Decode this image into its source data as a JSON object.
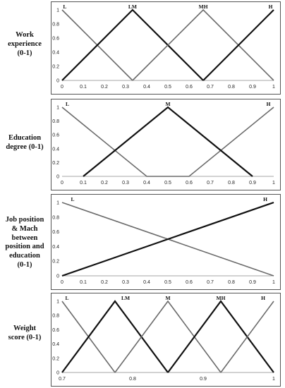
{
  "chart_data": [
    {
      "type": "line",
      "row_label": "Work experience (0-1)",
      "row_label_lines": [
        "Work",
        "experience",
        "(0-1)"
      ],
      "xlim": [
        0,
        1
      ],
      "ylim": [
        0,
        1
      ],
      "x_ticks": [
        "0",
        "0.1",
        "0.2",
        "0.3",
        "0.4",
        "0.5",
        "0.6",
        "0.7",
        "0.8",
        "0.9",
        "1"
      ],
      "y_ticks": [
        "0",
        "0.2",
        "0.4",
        "0.6",
        "0.8",
        "1"
      ],
      "series": [
        {
          "name": "L",
          "color": "#6b6b6b",
          "points": [
            [
              0,
              1
            ],
            [
              0.333,
              0
            ]
          ],
          "label_at": [
            0.013,
            1
          ]
        },
        {
          "name": "LM",
          "color": "#111111",
          "points": [
            [
              0,
              0
            ],
            [
              0.333,
              1
            ],
            [
              0.667,
              0
            ]
          ],
          "label_at": [
            0.333,
            1
          ]
        },
        {
          "name": "MH",
          "color": "#6b6b6b",
          "points": [
            [
              0.333,
              0
            ],
            [
              0.667,
              1
            ],
            [
              1,
              0
            ]
          ],
          "label_at": [
            0.667,
            1
          ]
        },
        {
          "name": "H",
          "color": "#111111",
          "points": [
            [
              0.667,
              0
            ],
            [
              1,
              1
            ]
          ],
          "label_at": [
            0.985,
            1
          ]
        }
      ]
    },
    {
      "type": "line",
      "row_label": "Education degree (0-1)",
      "row_label_lines": [
        "Education",
        "degree (0-1)"
      ],
      "xlim": [
        0,
        1
      ],
      "ylim": [
        0,
        1
      ],
      "x_ticks": [
        "0",
        "0.1",
        "0.2",
        "0.3",
        "0.4",
        "0.5",
        "0.6",
        "0.7",
        "0.8",
        "0.9",
        "1"
      ],
      "y_ticks": [
        "0",
        "0.2",
        "0.4",
        "0.6",
        "0.8",
        "1"
      ],
      "series": [
        {
          "name": "L",
          "color": "#6b6b6b",
          "points": [
            [
              0,
              1
            ],
            [
              0.4,
              0
            ],
            [
              0.6,
              0
            ],
            [
              1,
              1
            ]
          ],
          "label_at": [
            0.025,
            1
          ]
        },
        {
          "name": "M",
          "color": "#111111",
          "points": [
            [
              0.1,
              0
            ],
            [
              0.5,
              1
            ],
            [
              0.9,
              0
            ]
          ],
          "label_at": [
            0.5,
            1
          ]
        },
        {
          "name": "H",
          "color": "#111111",
          "points": [],
          "label_at": [
            0.975,
            1
          ]
        }
      ]
    },
    {
      "type": "line",
      "row_label": "Job position & Mach between position and education (0-1)",
      "row_label_lines": [
        "Job position",
        "& Mach",
        "between",
        "position and",
        "education",
        "(0-1)"
      ],
      "xlim": [
        0,
        1
      ],
      "ylim": [
        0,
        1
      ],
      "x_ticks": [
        "0",
        "0.1",
        "0.2",
        "0.3",
        "0.4",
        "0.5",
        "0.6",
        "0.7",
        "0.8",
        "0.9",
        "1"
      ],
      "y_ticks": [
        "0",
        "0.2",
        "0.4",
        "0.6",
        "0.8",
        "1"
      ],
      "series": [
        {
          "name": "L",
          "color": "#6b6b6b",
          "points": [
            [
              0,
              1
            ],
            [
              1,
              0
            ]
          ],
          "label_at": [
            0.05,
            1
          ]
        },
        {
          "name": "H",
          "color": "#111111",
          "points": [
            [
              0,
              0
            ],
            [
              1,
              1
            ]
          ],
          "label_at": [
            0.96,
            1
          ]
        }
      ]
    },
    {
      "type": "line",
      "row_label": "Weight score (0-1)",
      "row_label_lines": [
        "Weight",
        "score (0-1)"
      ],
      "xlim": [
        0.7,
        1
      ],
      "ylim": [
        0,
        1
      ],
      "x_ticks": [
        "0.7",
        "0.8",
        "0.9",
        "1"
      ],
      "y_ticks": [
        "0",
        "0.2",
        "0.4",
        "0.6",
        "0.8",
        "1"
      ],
      "series": [
        {
          "name": "L",
          "color": "#6b6b6b",
          "points": [
            [
              0.7,
              1
            ],
            [
              0.775,
              0
            ]
          ],
          "label_at": [
            0.707,
            1
          ]
        },
        {
          "name": "LM",
          "color": "#111111",
          "points": [
            [
              0.7,
              0
            ],
            [
              0.775,
              1
            ],
            [
              0.85,
              0
            ]
          ],
          "label_at": [
            0.79,
            1
          ]
        },
        {
          "name": "M",
          "color": "#6b6b6b",
          "points": [
            [
              0.775,
              0
            ],
            [
              0.85,
              1
            ],
            [
              0.925,
              0
            ]
          ],
          "label_at": [
            0.85,
            1
          ]
        },
        {
          "name": "MH",
          "color": "#111111",
          "points": [
            [
              0.85,
              0
            ],
            [
              0.925,
              1
            ],
            [
              1,
              0
            ]
          ],
          "label_at": [
            0.925,
            1
          ]
        },
        {
          "name": "H",
          "color": "#6b6b6b",
          "points": [
            [
              0.925,
              0
            ],
            [
              1,
              1
            ]
          ],
          "label_at": [
            0.985,
            1
          ]
        }
      ]
    }
  ]
}
